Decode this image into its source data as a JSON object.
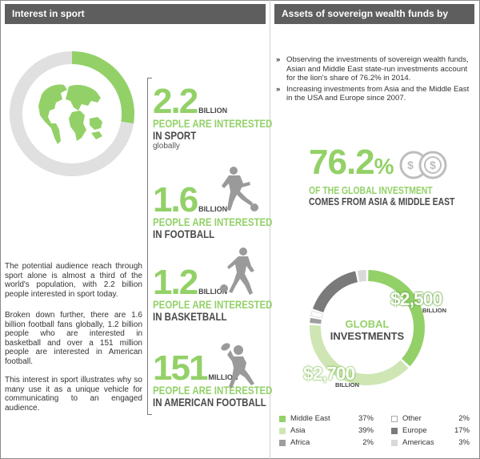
{
  "left_panel": {
    "title": "Interest in sport",
    "stats": [
      {
        "value": "2.2",
        "unit": "BILLION",
        "line1": "PEOPLE ARE INTERESTED",
        "line2": "IN SPORT",
        "line3": "globally"
      },
      {
        "value": "1.6",
        "unit": "BILLION",
        "line1": "PEOPLE ARE INTERESTED",
        "line2": "IN FOOTBALL",
        "line3": ""
      },
      {
        "value": "1.2",
        "unit": "BILLION",
        "line1": "PEOPLE ARE INTERESTED",
        "line2": "IN BASKETBALL",
        "line3": ""
      },
      {
        "value": "151",
        "unit": "MILLION",
        "line1": "PEOPLE ARE INTERESTED",
        "line2": "IN AMERICAN FOOTBALL",
        "line3": ""
      }
    ],
    "paragraphs": [
      "The potential audience reach through sport alone is almost a third of the world's population, with 2.2 billion people interested in sport today.",
      "Broken down further, there are 1.6 billion football fans globally, 1.2 billion people who are interested in basketball and over a 151 million people are interested in American football.",
      "This interest in sport illustrates why so many use it as a unique vehicle for communicating to an engaged audience."
    ]
  },
  "right_panel": {
    "title": "Assets of sovereign wealth funds by region",
    "bullets": [
      "Observing the investments of sovereign wealth funds, Asian and Middle East state-run investments account for the lion's share of 76.2% in 2014.",
      "Increasing investments from Asia and the Middle East in the USA and Europe since 2007."
    ],
    "headline_value": "76.2",
    "headline_sign": "%",
    "headline_line1": "OF THE GLOBAL INVESTMENT",
    "headline_line2": "COMES FROM ASIA & MIDDLE EAST",
    "donut_center_line1": "GLOBAL",
    "donut_center_line2": "INVESTMENTS",
    "callout_1": {
      "value": "$2,500",
      "unit": "BILLION"
    },
    "callout_2": {
      "value": "$2,700",
      "unit": "BILLION"
    }
  },
  "colors": {
    "accent_green": "#93d168",
    "light_green": "#cfe6b4",
    "header_gray": "#5e5e5e",
    "ring_gray": "#e0e0e0"
  },
  "icons": [
    "globe-icon",
    "football-player-icon",
    "basketball-player-icon",
    "american-football-player-icon",
    "coins-icon"
  ],
  "chart_data": [
    {
      "type": "pie",
      "variant": "donut",
      "categories": [
        "Interest in sport",
        "Other"
      ],
      "values": [
        27.5,
        72.5
      ],
      "colors": [
        "#93d168",
        "#e0e0e0"
      ]
    },
    {
      "type": "pie",
      "variant": "donut",
      "categories": [
        "Middle East",
        "Asia",
        "Africa",
        "Other",
        "Europe",
        "Americas"
      ],
      "values": [
        37,
        39,
        2,
        2,
        17,
        3
      ],
      "value_labels": [
        "37%",
        "39%",
        "2%",
        "2%",
        "17%",
        "3%"
      ],
      "colors": [
        "#93d168",
        "#cfe6b4",
        "#9e9e9e",
        "#ffffff",
        "#7a7a7a",
        "#d9d9d9"
      ]
    }
  ]
}
